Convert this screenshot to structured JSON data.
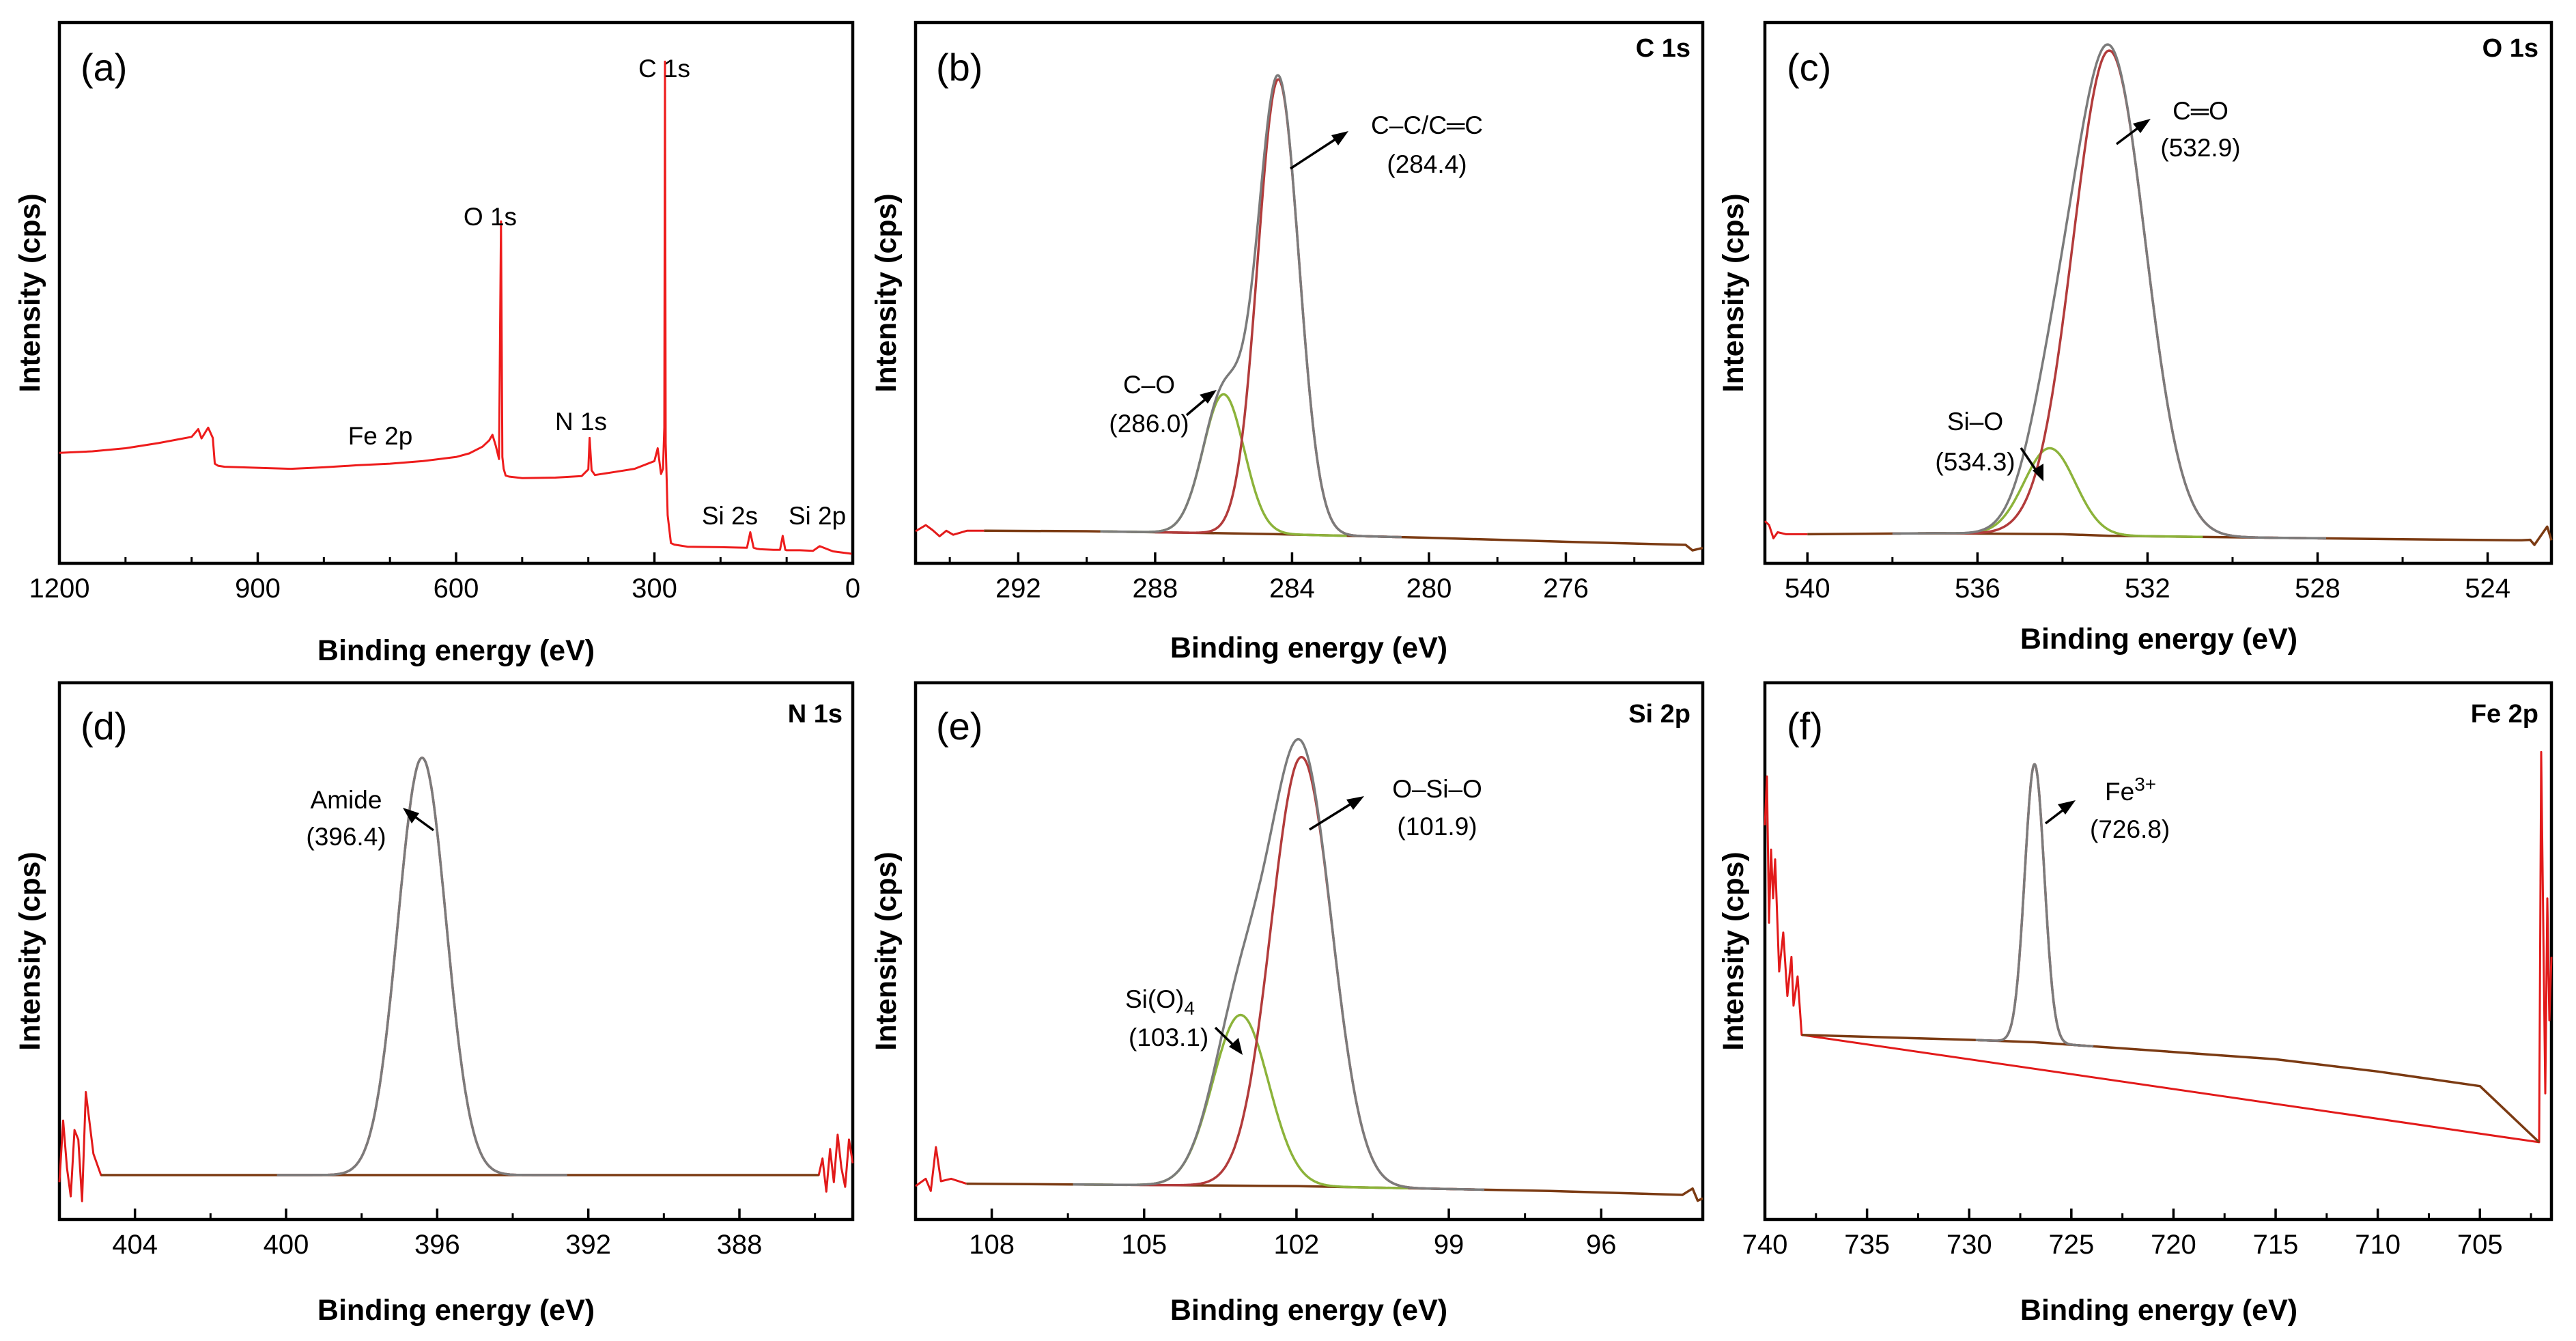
{
  "figure": {
    "xlabel": "Binding energy (eV)",
    "ylabel": "Intensity (cps)"
  },
  "colors": {
    "survey": "#ee1c1c",
    "raw_spectrum": "#e21a1a",
    "envelope": "#7b7b7b",
    "main_fit": "#b23b3b",
    "secondary_fit": "#8cb33a",
    "background": "#7b3a12",
    "axis": "#000000"
  },
  "chart_data": [
    {
      "id": "a",
      "label": "(a)",
      "corner_label": "",
      "type": "line",
      "xlim": [
        1200,
        0
      ],
      "xticks": [
        1200,
        900,
        600,
        300,
        0
      ],
      "xticks_minor": [
        1100,
        1000,
        800,
        700,
        500,
        400,
        200,
        100
      ],
      "ylim": [
        0,
        100
      ],
      "series": [
        {
          "name": "XPS survey spectrum",
          "role": "survey",
          "x": [
            1200,
            1150,
            1100,
            1050,
            1000,
            990,
            985,
            975,
            968,
            965,
            960,
            950,
            900,
            850,
            800,
            750,
            700,
            650,
            600,
            580,
            560,
            550,
            545,
            540,
            535,
            532,
            530,
            528,
            525,
            520,
            500,
            450,
            410,
            400,
            398,
            395,
            390,
            380,
            350,
            330,
            300,
            295,
            290,
            287,
            285,
            284,
            283,
            280,
            275,
            270,
            260,
            250,
            200,
            160,
            155,
            150,
            145,
            140,
            120,
            110,
            106,
            102,
            100,
            80,
            60,
            50,
            30,
            0
          ],
          "y": [
            20.1,
            20.4,
            21.0,
            22.0,
            23.2,
            24.7,
            22.9,
            25.0,
            23.0,
            18.0,
            17.6,
            17.4,
            17.2,
            17.0,
            17.3,
            17.7,
            18.0,
            18.5,
            19.3,
            20.0,
            21.3,
            22.5,
            23.6,
            21.5,
            18.9,
            65.0,
            19.3,
            17.0,
            15.7,
            15.5,
            15.2,
            15.3,
            15.6,
            16.9,
            23.0,
            16.7,
            15.8,
            16.0,
            16.6,
            17.0,
            18.5,
            21.0,
            16.0,
            17.0,
            25.0,
            96.0,
            22.0,
            8.0,
            2.6,
            2.3,
            2.1,
            1.9,
            1.8,
            1.7,
            4.7,
            1.7,
            1.5,
            1.4,
            1.3,
            1.3,
            4.0,
            1.3,
            1.2,
            1.2,
            1.1,
            2.0,
            1.0,
            0.5
          ]
        }
      ],
      "annotations": [
        {
          "text": "C 1s",
          "peak_x": 285
        },
        {
          "text": "O 1s",
          "peak_x": 532
        },
        {
          "text": "Fe 2p",
          "peak_x": 711
        },
        {
          "text": "N 1s",
          "peak_x": 398
        },
        {
          "text": "Si 2s",
          "peak_x": 150
        },
        {
          "text": "Si 2p",
          "peak_x": 102
        }
      ]
    },
    {
      "id": "b",
      "label": "(b)",
      "corner_label": "C 1s",
      "type": "line",
      "xlim": [
        295,
        272
      ],
      "xticks": [
        292,
        288,
        284,
        280,
        276
      ],
      "xticks_minor": [
        294,
        290,
        286,
        282,
        278,
        274
      ],
      "ylim": [
        -2,
        100
      ],
      "series": [
        {
          "name": "raw data",
          "role": "raw_spectrum",
          "x": [
            295,
            294.7,
            294.5,
            294.3,
            294.1,
            293.9,
            293.5,
            293
          ],
          "y": [
            3,
            4.2,
            3.2,
            2,
            3.1,
            2.3,
            3.1,
            3.1
          ]
        },
        {
          "name": "background",
          "role": "background",
          "x": [
            293,
            290,
            287,
            284.4,
            280,
            276,
            272.5,
            272.3,
            272
          ],
          "y": [
            3.1,
            3.0,
            2.7,
            2.4,
            1.7,
            0.9,
            0.3,
            -0.8,
            -0.3
          ]
        },
        {
          "name": "C-O component",
          "role": "secondary_fit",
          "fn": "gauss",
          "center": 286.0,
          "sigma": 0.6,
          "height": 27.5
        },
        {
          "name": "C-C/C=C component",
          "role": "main_fit",
          "fn": "gauss",
          "center": 284.4,
          "sigma": 0.6,
          "height": 90
        },
        {
          "name": "envelope",
          "role": "envelope",
          "fn": "sum"
        }
      ],
      "annotations": [
        {
          "text": "C–C/C═C",
          "text2": "(284.4)",
          "peak_x": 284.4
        },
        {
          "text": "C–O",
          "text2": "(286.0)",
          "peak_x": 286.0
        }
      ]
    },
    {
      "id": "c",
      "label": "(c)",
      "corner_label": "O 1s",
      "type": "line",
      "xlim": [
        541,
        522.5
      ],
      "xticks": [
        540,
        536,
        532,
        528,
        524
      ],
      "xticks_minor": [
        538,
        534,
        530,
        526
      ],
      "ylim": [
        -2,
        100
      ],
      "series": [
        {
          "name": "raw data",
          "role": "raw_spectrum",
          "x": [
            541,
            540.9,
            540.8,
            540.7,
            540.5,
            540
          ],
          "y": [
            5,
            4.2,
            1.6,
            2.8,
            2.4,
            2.4
          ]
        },
        {
          "name": "background",
          "role": "background",
          "x": [
            540,
            537,
            534,
            532.9,
            530,
            526,
            523.2,
            523,
            522.9,
            522.6,
            522.5
          ],
          "y": [
            2.4,
            2.6,
            2.4,
            2.1,
            1.8,
            1.4,
            1.2,
            1.3,
            0.3,
            3.9,
            1.2
          ]
        },
        {
          "name": "Si-O component",
          "role": "secondary_fit",
          "fn": "gauss",
          "center": 534.3,
          "sigma": 0.6,
          "height": 17
        },
        {
          "name": "C=O component",
          "role": "main_fit",
          "fn": "gauss",
          "center": 532.9,
          "sigma": 0.85,
          "height": 96
        },
        {
          "name": "envelope",
          "role": "envelope",
          "fn": "sum"
        }
      ],
      "annotations": [
        {
          "text": "C═O",
          "text2": "(532.9)",
          "peak_x": 532.9
        },
        {
          "text": "Si–O",
          "text2": "(534.3)",
          "peak_x": 534.3
        }
      ]
    },
    {
      "id": "d",
      "label": "(d)",
      "corner_label": "N 1s",
      "type": "line",
      "xlim": [
        406,
        385
      ],
      "xticks": [
        404,
        400,
        396,
        392,
        388
      ],
      "xticks_minor": [
        402,
        398,
        394,
        390,
        386
      ],
      "ylim": [
        -8,
        100
      ],
      "series": [
        {
          "name": "raw data",
          "role": "raw_spectrum",
          "x": [
            406,
            405.9,
            405.8,
            405.7,
            405.6,
            405.5,
            405.4,
            405.3,
            405.1,
            404.9,
            385.9,
            385.8,
            385.7,
            385.6,
            385.5,
            385.4,
            385.3,
            385.2,
            385.1,
            385
          ],
          "y": [
            -1.0,
            12.0,
            2.0,
            -4.0,
            10.0,
            8.0,
            -5.0,
            18.0,
            5.0,
            0.5,
            0.5,
            4.0,
            -3.0,
            6.0,
            -1.0,
            9.0,
            2.0,
            -2.0,
            8.0,
            3.0
          ]
        },
        {
          "name": "background",
          "role": "background",
          "x": [
            404.9,
            396.4,
            385.9
          ],
          "y": [
            0.5,
            0.5,
            0.5
          ]
        },
        {
          "name": "Amide component",
          "role": "main_fit",
          "fn": "gauss",
          "center": 396.4,
          "sigma": 0.64,
          "height": 88
        },
        {
          "name": "envelope",
          "role": "envelope",
          "fn": "sum"
        }
      ],
      "annotations": [
        {
          "text": "Amide",
          "text2": "(396.4)",
          "peak_x": 396.4
        }
      ]
    },
    {
      "id": "e",
      "label": "(e)",
      "corner_label": "Si 2p",
      "type": "line",
      "xlim": [
        109.5,
        94
      ],
      "xticks": [
        108,
        105,
        102,
        99,
        96
      ],
      "xticks_minor": [
        106.5,
        103.5,
        100.5,
        97.5
      ],
      "ylim": [
        -5,
        100
      ],
      "series": [
        {
          "name": "raw data",
          "role": "raw_spectrum",
          "x": [
            109.5,
            109.3,
            109.2,
            109.1,
            109,
            108.8,
            108.5
          ],
          "y": [
            1.0,
            2.5,
            0.0,
            9.0,
            2.0,
            2.5,
            1.5
          ]
        },
        {
          "name": "background",
          "role": "background",
          "x": [
            108.5,
            102,
            97,
            94.4,
            94.2,
            94.1,
            94
          ],
          "y": [
            1.5,
            1.0,
            0.0,
            -0.8,
            0.5,
            -2.0,
            -1.5
          ]
        },
        {
          "name": "Si(O)4 component",
          "role": "secondary_fit",
          "fn": "gauss",
          "center": 103.1,
          "sigma": 0.55,
          "height": 35
        },
        {
          "name": "O-Si-O component",
          "role": "main_fit",
          "fn": "gauss",
          "center": 101.9,
          "sigma": 0.6,
          "height": 88
        },
        {
          "name": "envelope",
          "role": "envelope",
          "fn": "sum"
        }
      ],
      "annotations": [
        {
          "text": "O–Si–O",
          "text2": "(101.9)",
          "peak_x": 101.9
        },
        {
          "text": "Si(O)",
          "sub": "4",
          "text2": "(103.1)",
          "peak_x": 103.1
        }
      ]
    },
    {
      "id": "f",
      "label": "(f)",
      "corner_label": "Fe 2p",
      "type": "line",
      "xlim": [
        740,
        701.5
      ],
      "xticks": [
        740,
        735,
        730,
        725,
        720,
        715,
        710,
        705
      ],
      "xticks_minor": [
        737.5,
        732.5,
        727.5,
        722.5,
        717.5,
        712.5,
        707.5,
        702.5
      ],
      "ylim": [
        -5,
        100
      ],
      "series": [
        {
          "name": "raw data",
          "role": "raw_spectrum",
          "x": [
            740,
            739.9,
            739.8,
            739.7,
            739.6,
            739.5,
            739.3,
            739.1,
            738.9,
            738.7,
            738.6,
            738.4,
            738.2,
            702.1,
            702.0,
            701.9,
            701.8,
            701.7,
            701.6,
            701.5
          ],
          "y": [
            75,
            85,
            55,
            70,
            60,
            68,
            45,
            53,
            40,
            48,
            38,
            44,
            32,
            10,
            90,
            55,
            20,
            60,
            35,
            48
          ]
        },
        {
          "name": "background",
          "role": "background",
          "x": [
            738.2,
            730,
            726.8,
            720,
            715,
            710,
            705,
            702.1
          ],
          "y": [
            32,
            31,
            30.5,
            28.5,
            27,
            24.5,
            21.5,
            10
          ]
        },
        {
          "name": "Fe3+ component",
          "role": "main_fit",
          "fn": "gauss",
          "center": 726.8,
          "sigma": 0.48,
          "height": 57
        },
        {
          "name": "envelope",
          "role": "envelope",
          "fn": "sum"
        }
      ],
      "annotations": [
        {
          "text": "Fe",
          "sup": "3+",
          "text2": "(726.8)",
          "peak_x": 726.8
        }
      ]
    }
  ]
}
